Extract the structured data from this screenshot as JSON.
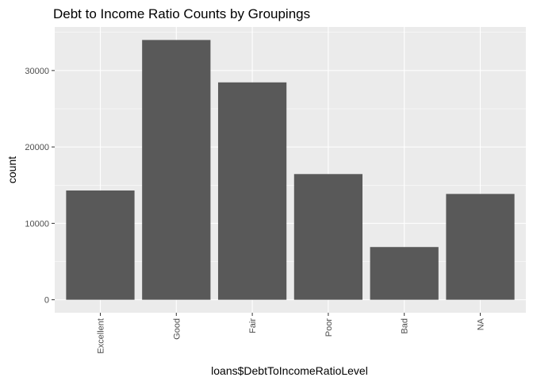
{
  "chart_data": {
    "type": "bar",
    "title": "Debt to Income Ratio Counts by Groupings",
    "xlabel": "loans$DebtToIncomeRatioLevel",
    "ylabel": "count",
    "categories": [
      "Excellent",
      "Good",
      "Fair",
      "Poor",
      "Bad",
      "NA"
    ],
    "values": [
      14300,
      34000,
      28450,
      16450,
      6900,
      13850
    ],
    "y_ticks": [
      0,
      10000,
      20000,
      30000
    ],
    "ylim": [
      -1700,
      35700
    ],
    "grid": true,
    "legend": "none",
    "colors": {
      "panel": "#ebebeb",
      "grid_major": "#ffffff",
      "bar": "#595959",
      "tick": "#333333"
    }
  }
}
